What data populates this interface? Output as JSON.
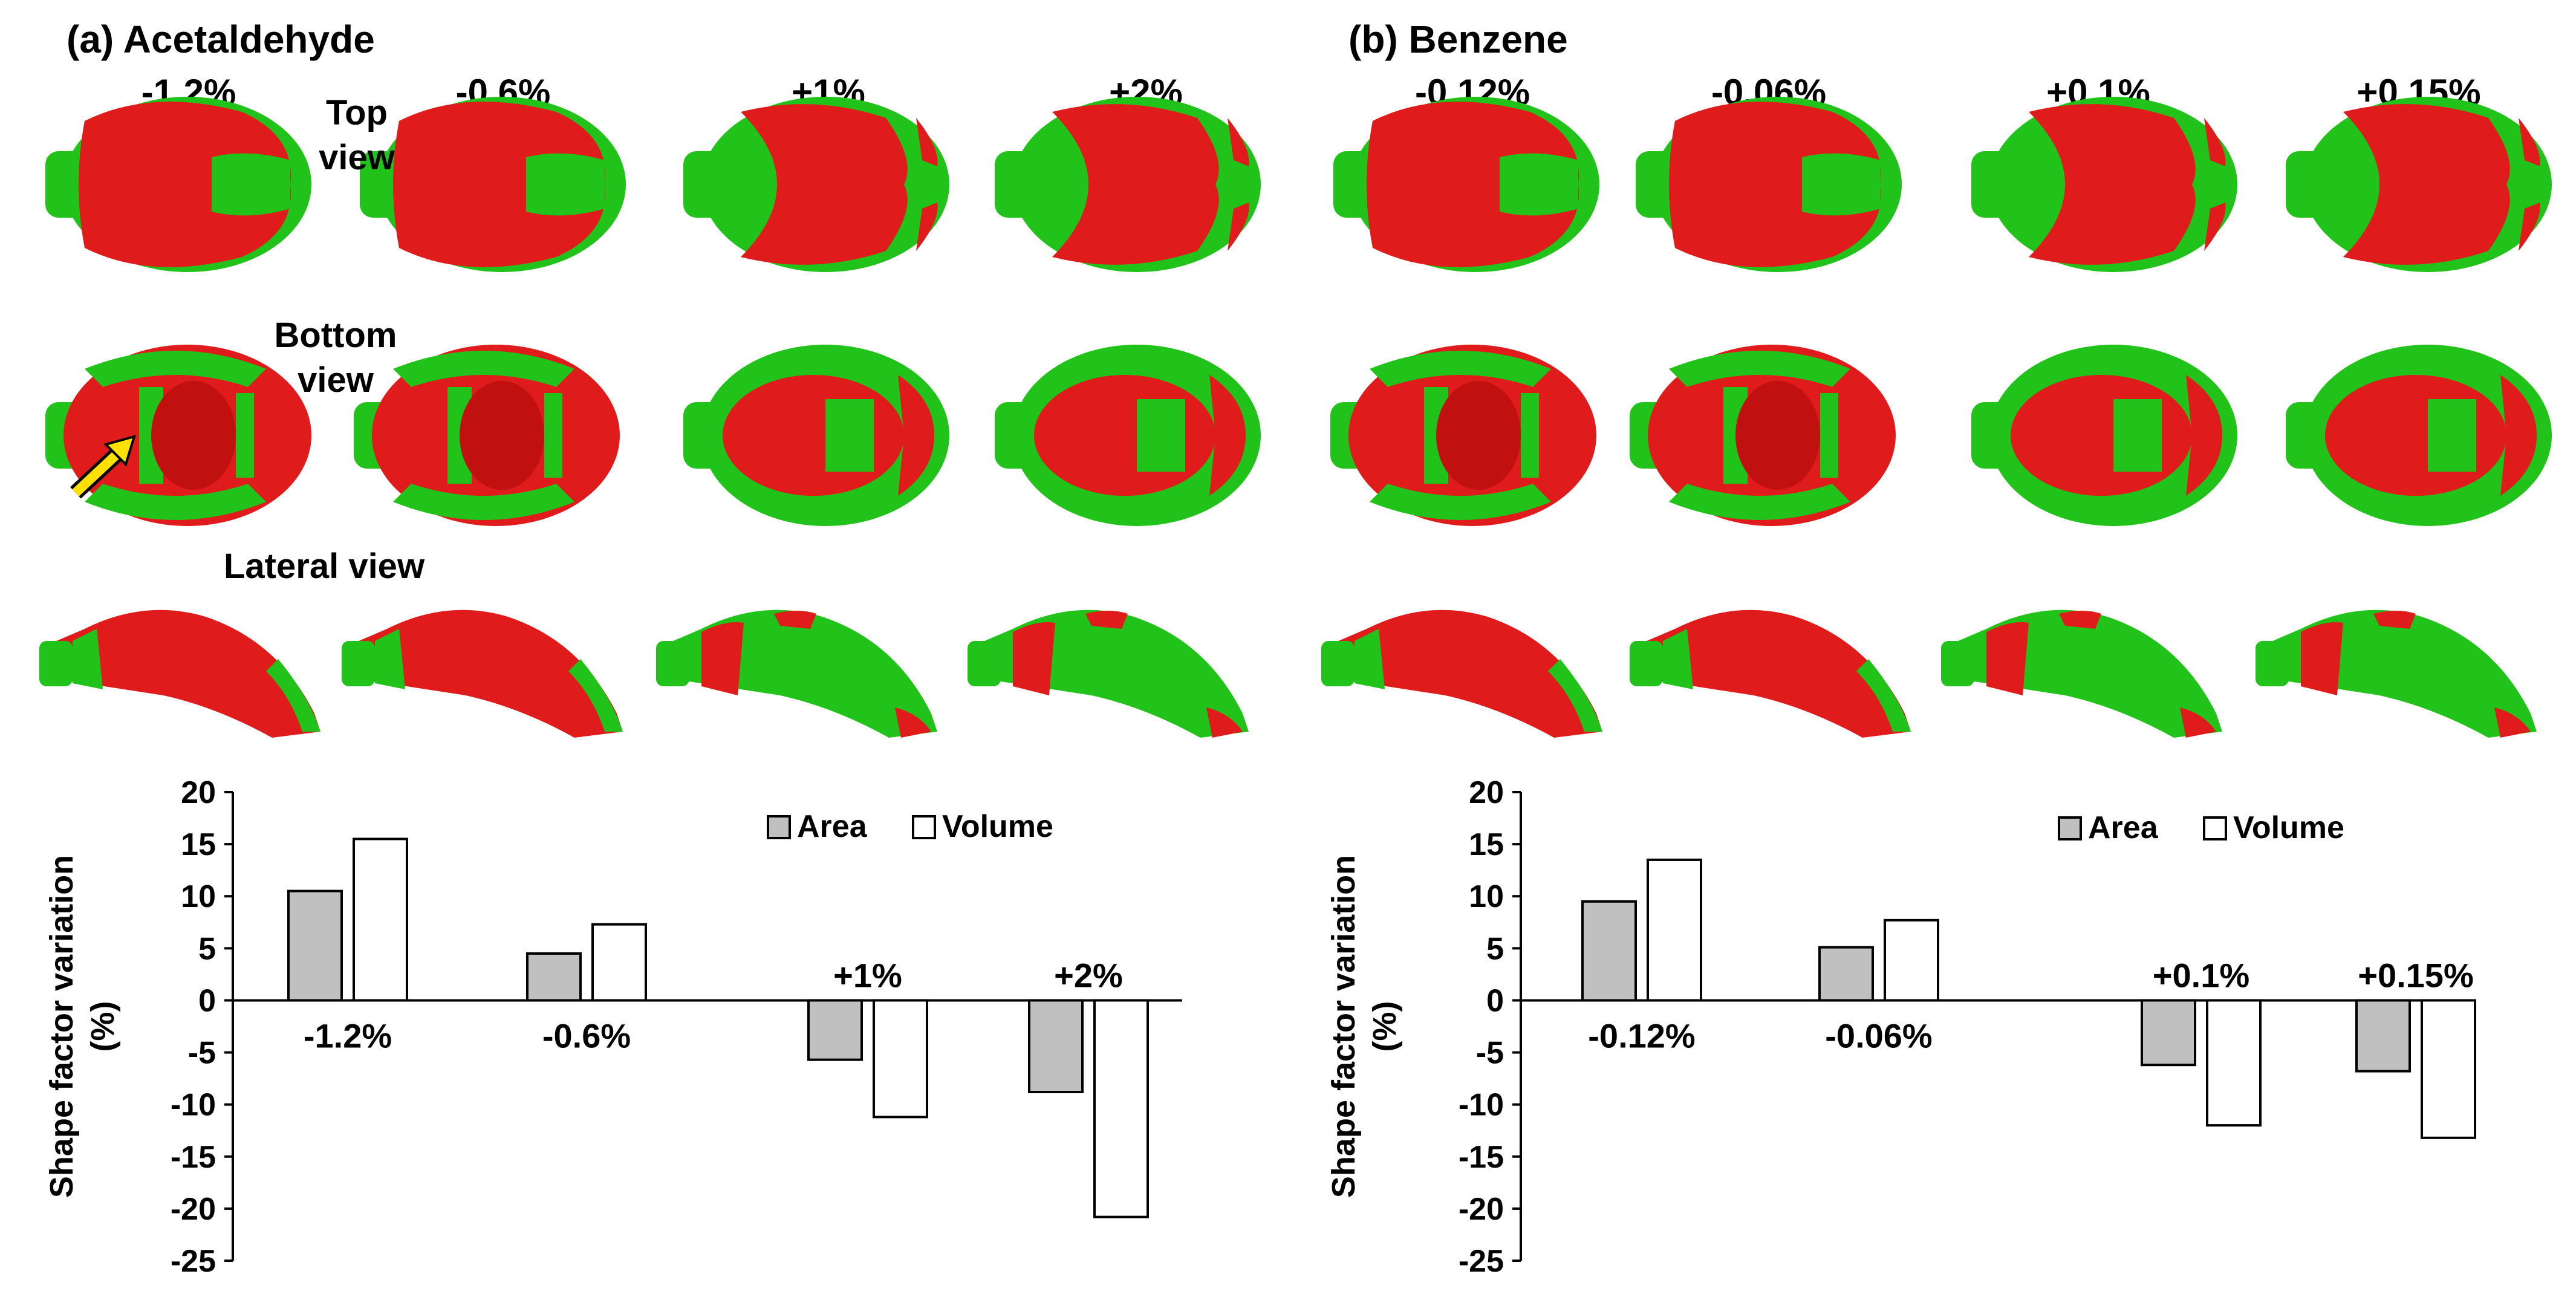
{
  "panels": [
    {
      "title": "(a) Acetaldehyde",
      "columns": [
        "-1.2%",
        "-0.6%",
        "+1%",
        "+2%"
      ],
      "view_labels": {
        "top": "Top\nview",
        "bottom": "Bottom\nview",
        "lateral": "Lateral view"
      },
      "colors": {
        "red": "#e01b1b",
        "green": "#21c21a",
        "arrow": "#ffe000"
      }
    },
    {
      "title": "(b) Benzene",
      "columns": [
        "-0.12%",
        "-0.06%",
        "+0.1%",
        "+0.15%"
      ],
      "colors": {
        "red": "#e01b1b",
        "green": "#21c21a"
      }
    }
  ],
  "chart_data": [
    {
      "type": "bar",
      "categories": [
        "-1.2%",
        "-0.6%",
        "+1%",
        "+2%"
      ],
      "series": [
        {
          "name": "Area",
          "values": [
            10.5,
            4.5,
            -5.7,
            -8.8
          ],
          "color": "#c0c0c0"
        },
        {
          "name": "Volume",
          "values": [
            15.5,
            7.3,
            -11.2,
            -20.8
          ],
          "color": "#ffffff"
        }
      ],
      "ylabel": "Shape factor variation (%)",
      "ylim": [
        -25,
        20
      ],
      "yticks": [
        "20",
        "15",
        "10",
        "5",
        "0",
        "-5",
        "-10",
        "-15",
        "-20",
        "-25"
      ],
      "legend": [
        "Area",
        "Volume"
      ]
    },
    {
      "type": "bar",
      "categories": [
        "-0.12%",
        "-0.06%",
        "+0.1%",
        "+0.15%"
      ],
      "series": [
        {
          "name": "Area",
          "values": [
            9.5,
            5.1,
            -6.2,
            -6.8
          ],
          "color": "#c0c0c0"
        },
        {
          "name": "Volume",
          "values": [
            13.5,
            7.7,
            -12.0,
            -13.2
          ],
          "color": "#ffffff"
        }
      ],
      "ylabel": "Shape factor variation (%)",
      "ylim": [
        -25,
        20
      ],
      "yticks": [
        "20",
        "15",
        "10",
        "5",
        "0",
        "-5",
        "-10",
        "-15",
        "-20",
        "-25"
      ],
      "legend": [
        "Area",
        "Volume"
      ]
    }
  ]
}
